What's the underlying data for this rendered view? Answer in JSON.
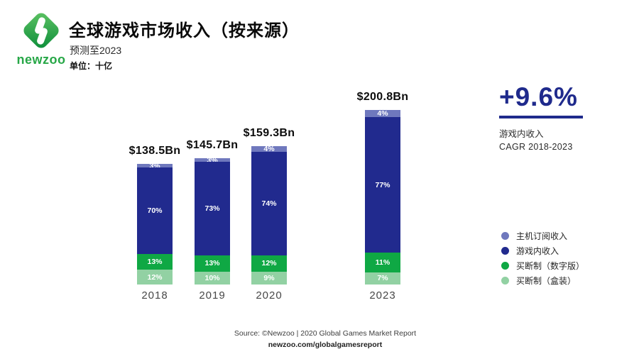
{
  "brand": {
    "logo_text": "newzoo",
    "logo_green_light": "#5FC464",
    "logo_green_dark": "#0A8C39",
    "logo_text_color": "#27A747"
  },
  "header": {
    "title": "全球游戏市场收入（按来源）",
    "subtitle": "预测至2023",
    "unit_label": "单位：十亿"
  },
  "stat": {
    "value": "+9.6%",
    "line1": "游戏内收入",
    "line2": "CAGR 2018-2023",
    "color": "#1F2A8C"
  },
  "footer": {
    "source_line": "Source: ©Newzoo | 2020 Global Games Market Report",
    "link_line": "newzoo.com/globalgamesreport"
  },
  "chart_data": {
    "type": "bar",
    "stacked": true,
    "title": "全球游戏市场收入（按来源）",
    "unit_label": "单位：十亿",
    "legend_position": "right",
    "grid": false,
    "categories": [
      "2018",
      "2019",
      "2020",
      "2023"
    ],
    "totals_bn": [
      138.5,
      145.7,
      159.3,
      200.8
    ],
    "total_labels": [
      "$138.5Bn",
      "$145.7Bn",
      "$159.3Bn",
      "$200.8Bn"
    ],
    "series": [
      {
        "name": "主机订阅收入",
        "color": "#6F78BD",
        "values_pct": [
          3,
          3,
          4,
          4
        ]
      },
      {
        "name": "游戏内收入",
        "color": "#212A8E",
        "values_pct": [
          70,
          73,
          74,
          77
        ]
      },
      {
        "name": "买断制（数字版）",
        "color": "#0FA844",
        "values_pct": [
          13,
          13,
          12,
          11
        ]
      },
      {
        "name": "买断制（盒装）",
        "color": "#92D1A3",
        "values_pct": [
          12,
          10,
          9,
          7
        ]
      }
    ]
  }
}
